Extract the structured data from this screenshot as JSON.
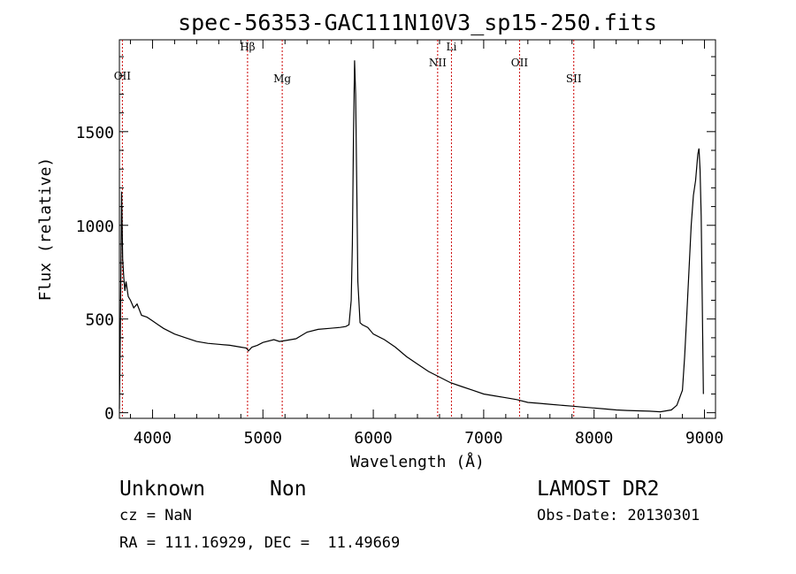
{
  "chart_data": {
    "type": "line",
    "title": "spec-56353-GAC111N10V3_sp15-250.fits",
    "xlabel": "Wavelength (Å)",
    "ylabel": "Flux (relative)",
    "xlim": [
      3700,
      9100
    ],
    "ylim": [
      -30,
      1990
    ],
    "x_ticks": [
      4000,
      5000,
      6000,
      7000,
      8000,
      9000
    ],
    "y_ticks": [
      0,
      500,
      1000,
      1500
    ],
    "grid": false,
    "series": [
      {
        "x": [
          3700,
          3710,
          3720,
          3730,
          3740,
          3750,
          3760,
          3780,
          3800,
          3830,
          3860,
          3900,
          3950,
          4000,
          4050,
          4100,
          4200,
          4300,
          4400,
          4500,
          4600,
          4700,
          4800,
          4850,
          4870,
          4900,
          4950,
          5000,
          5100,
          5150,
          5200,
          5300,
          5400,
          5500,
          5600,
          5700,
          5750,
          5780,
          5800,
          5810,
          5820,
          5830,
          5840,
          5850,
          5860,
          5880,
          5900,
          5950,
          6000,
          6100,
          6200,
          6300,
          6400,
          6500,
          6600,
          6700,
          6800,
          6900,
          7000,
          7100,
          7200,
          7300,
          7400,
          7500,
          7600,
          7700,
          7800,
          7900,
          8000,
          8100,
          8200,
          8300,
          8400,
          8500,
          8600,
          8700,
          8750,
          8800,
          8820,
          8840,
          8860,
          8880,
          8900,
          8920,
          8940,
          8950,
          8960,
          8970,
          8980,
          8990
        ],
        "y": [
          20,
          500,
          1180,
          820,
          720,
          650,
          700,
          620,
          600,
          560,
          580,
          520,
          510,
          490,
          470,
          450,
          420,
          400,
          380,
          370,
          365,
          360,
          350,
          345,
          330,
          350,
          360,
          375,
          390,
          380,
          385,
          395,
          430,
          445,
          450,
          455,
          460,
          470,
          600,
          900,
          1450,
          1880,
          1700,
          1200,
          700,
          480,
          470,
          455,
          420,
          390,
          350,
          300,
          260,
          220,
          190,
          160,
          140,
          120,
          100,
          90,
          80,
          70,
          55,
          50,
          45,
          40,
          35,
          30,
          25,
          20,
          15,
          12,
          10,
          8,
          5,
          15,
          40,
          120,
          300,
          520,
          760,
          1000,
          1160,
          1240,
          1380,
          1410,
          1300,
          1050,
          600,
          100
        ],
        "color": "#000000"
      }
    ],
    "reference_lines": [
      {
        "label": "OII",
        "x": 3727,
        "color": "#cc0000"
      },
      {
        "label": "Hβ",
        "x": 4861,
        "color": "#cc0000"
      },
      {
        "label": "Mg",
        "x": 5175,
        "color": "#cc0000"
      },
      {
        "label": "NII",
        "x": 6583,
        "color": "#cc0000"
      },
      {
        "label": "Li",
        "x": 6708,
        "color": "#cc0000"
      },
      {
        "label": "OII",
        "x": 7325,
        "color": "#cc0000"
      },
      {
        "label": "SII",
        "x": 7816,
        "color": "#cc0000"
      }
    ]
  },
  "footer": {
    "object_type": "Unknown",
    "subclass": "Non",
    "survey": "LAMOST DR2",
    "cz": "cz = NaN",
    "obs_date": "Obs-Date: 20130301",
    "coords": "RA = 111.16929, DEC =  11.49669"
  }
}
